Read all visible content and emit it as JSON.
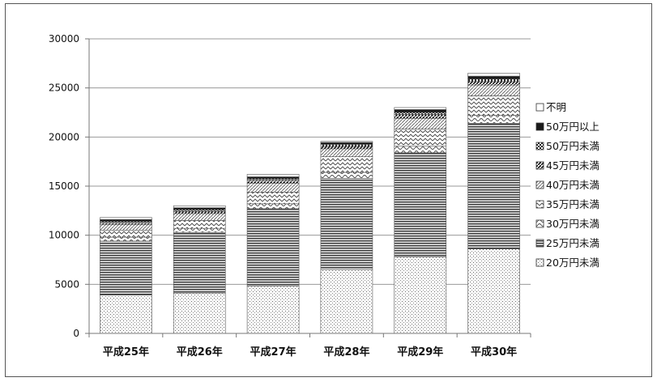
{
  "chart_data": {
    "type": "bar",
    "stacked": true,
    "title": "",
    "xlabel": "",
    "ylabel": "",
    "ylim": [
      0,
      30000
    ],
    "yticks": [
      0,
      5000,
      10000,
      15000,
      20000,
      25000,
      30000
    ],
    "grid": true,
    "legend_position": "right",
    "categories": [
      "平成25年",
      "平成26年",
      "平成27年",
      "平成28年",
      "平成29年",
      "平成30年"
    ],
    "series": [
      {
        "name": "20万円未満",
        "values": [
          3900,
          4100,
          4800,
          6500,
          7800,
          8600
        ]
      },
      {
        "name": "25万円未満",
        "values": [
          5500,
          6200,
          7900,
          9300,
          10600,
          12800
        ]
      },
      {
        "name": "30万円未満",
        "values": [
          400,
          400,
          500,
          600,
          700,
          800
        ]
      },
      {
        "name": "35万円未満",
        "values": [
          700,
          800,
          1200,
          1600,
          1700,
          2000
        ]
      },
      {
        "name": "40万円未満",
        "values": [
          600,
          700,
          900,
          800,
          1100,
          1100
        ]
      },
      {
        "name": "45万円未満",
        "values": [
          200,
          250,
          300,
          300,
          400,
          400
        ]
      },
      {
        "name": "50万円未満",
        "values": [
          100,
          150,
          150,
          150,
          200,
          200
        ]
      },
      {
        "name": "50万円以上",
        "values": [
          200,
          200,
          200,
          200,
          300,
          300
        ]
      },
      {
        "name": "不明",
        "values": [
          200,
          200,
          250,
          100,
          200,
          300
        ]
      }
    ]
  }
}
